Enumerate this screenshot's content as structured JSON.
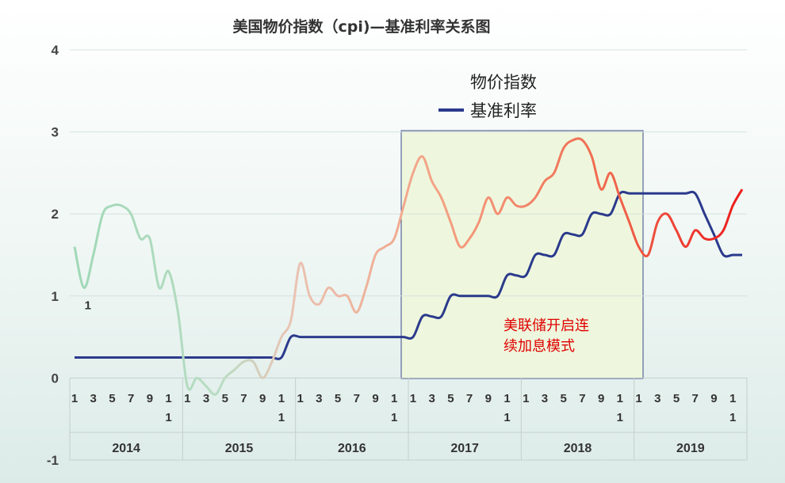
{
  "chart_data": {
    "type": "line",
    "title": "美国物价指数（cpi)—基准利率关系图",
    "xlabel": "",
    "ylabel": "",
    "ylim": [
      -1,
      4
    ],
    "yticks": [
      "-1",
      "0",
      "1",
      "2",
      "3",
      "4"
    ],
    "years": [
      "2014",
      "2015",
      "2016",
      "2017",
      "2018",
      "2019"
    ],
    "month_ticks": [
      "1",
      "3",
      "5",
      "7",
      "9",
      "1\n1"
    ],
    "legend": {
      "position": "top-center"
    },
    "annotation": {
      "lines": [
        "美联储开启连",
        "续加息模式"
      ],
      "color": "#e00000",
      "box_color": "#eef7dd"
    },
    "data_labels": [
      {
        "series": 0,
        "index": 1,
        "text": "1"
      }
    ],
    "grid": true,
    "series": [
      {
        "name": "物价指数",
        "color": "#f07a60",
        "values": [
          1.6,
          1.1,
          1.5,
          2.0,
          2.1,
          2.1,
          2.0,
          1.7,
          1.7,
          1.1,
          1.3,
          0.8,
          -0.1,
          0.0,
          -0.1,
          -0.2,
          0.0,
          0.1,
          0.2,
          0.2,
          0.0,
          0.2,
          0.5,
          0.7,
          1.4,
          1.0,
          0.9,
          1.1,
          1.0,
          1.0,
          0.8,
          1.1,
          1.5,
          1.6,
          1.7,
          2.1,
          2.5,
          2.7,
          2.4,
          2.2,
          1.9,
          1.6,
          1.7,
          1.9,
          2.2,
          2.0,
          2.2,
          2.1,
          2.1,
          2.2,
          2.4,
          2.5,
          2.8,
          2.9,
          2.9,
          2.7,
          2.3,
          2.5,
          2.2,
          1.9,
          1.6,
          1.5,
          1.9,
          2.0,
          1.8,
          1.6,
          1.8,
          1.7,
          1.7,
          1.8,
          2.1,
          2.3
        ]
      },
      {
        "name": "基准利率",
        "color": "#2b3a8c",
        "values": [
          0.25,
          0.25,
          0.25,
          0.25,
          0.25,
          0.25,
          0.25,
          0.25,
          0.25,
          0.25,
          0.25,
          0.25,
          0.25,
          0.25,
          0.25,
          0.25,
          0.25,
          0.25,
          0.25,
          0.25,
          0.25,
          0.25,
          0.25,
          0.5,
          0.5,
          0.5,
          0.5,
          0.5,
          0.5,
          0.5,
          0.5,
          0.5,
          0.5,
          0.5,
          0.5,
          0.5,
          0.5,
          0.75,
          0.75,
          0.75,
          1.0,
          1.0,
          1.0,
          1.0,
          1.0,
          1.0,
          1.25,
          1.25,
          1.25,
          1.5,
          1.5,
          1.5,
          1.75,
          1.75,
          1.75,
          2.0,
          2.0,
          2.0,
          2.25,
          2.25,
          2.25,
          2.25,
          2.25,
          2.25,
          2.25,
          2.25,
          2.25,
          2.0,
          1.75,
          1.5,
          1.5,
          1.5
        ]
      }
    ]
  }
}
